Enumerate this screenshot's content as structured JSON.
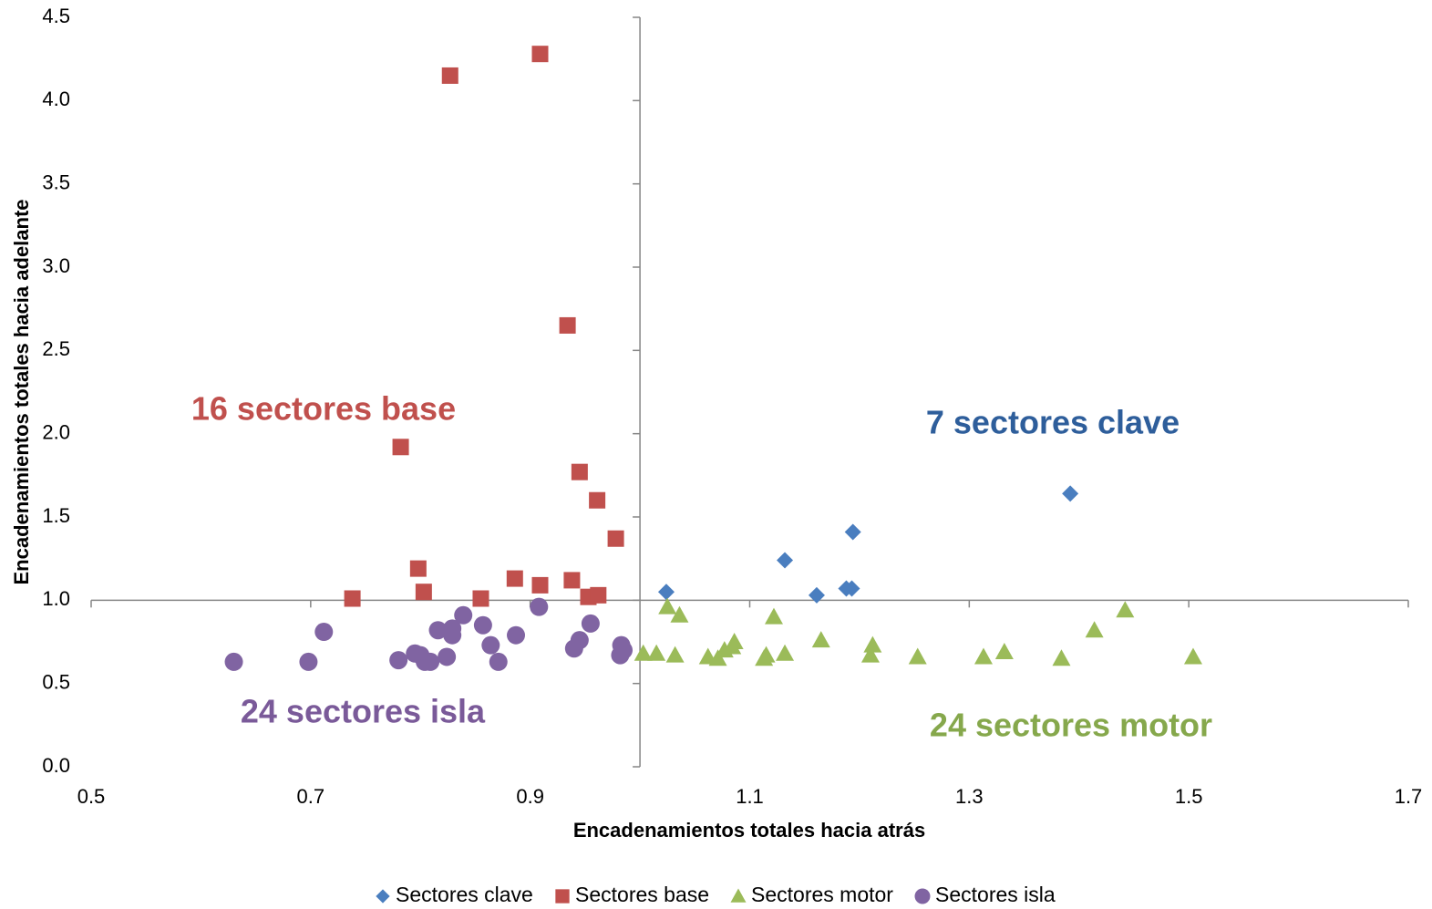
{
  "chart_data": {
    "type": "scatter",
    "x_label": "Encadenamientos totales hacia atrás",
    "y_label": "Encadenamientos totales hacia adelante",
    "xlim": [
      0.5,
      1.7
    ],
    "ylim": [
      0,
      4.5
    ],
    "xticks": [
      0.5,
      0.7,
      0.9,
      1.1,
      1.3,
      1.5,
      1.7
    ],
    "yticks": [
      {
        "value": 0,
        "label": "0.0"
      },
      0.5,
      {
        "value": 1,
        "label": "1.0"
      },
      1.5,
      {
        "value": 2,
        "label": "2.0"
      },
      2.5,
      {
        "value": 3,
        "label": "3.0"
      },
      3.5,
      {
        "value": 4,
        "label": "4.0"
      },
      4.5
    ],
    "axes_cross": {
      "x": 1,
      "y": 1
    },
    "legend": "bottom",
    "series": [
      {
        "name": "Sectores clave",
        "color": "#4a7ebf",
        "marker": "diamond",
        "x": [
          1.024,
          1.132,
          1.161,
          1.188,
          1.193,
          1.194,
          1.392
        ],
        "y": [
          1.05,
          1.24,
          1.03,
          1.07,
          1.07,
          1.41,
          1.64
        ]
      },
      {
        "name": "Sectores base",
        "color": "#c0504d",
        "marker": "square",
        "x": [
          0.909,
          0.827,
          0.934,
          0.782,
          0.945,
          0.961,
          0.978,
          0.798,
          0.886,
          0.909,
          0.938,
          0.803,
          0.738,
          0.855,
          0.953,
          0.962
        ],
        "y": [
          4.28,
          4.15,
          2.65,
          1.92,
          1.77,
          1.6,
          1.37,
          1.19,
          1.13,
          1.09,
          1.12,
          1.05,
          1.01,
          1.01,
          1.02,
          1.03
        ]
      },
      {
        "name": "Sectores motor",
        "color": "#9bbb59",
        "marker": "triangle",
        "x": [
          1.003,
          1.015,
          1.025,
          1.036,
          1.032,
          1.062,
          1.071,
          1.077,
          1.086,
          1.084,
          1.113,
          1.115,
          1.122,
          1.132,
          1.165,
          1.21,
          1.212,
          1.253,
          1.313,
          1.332,
          1.384,
          1.414,
          1.442,
          1.504
        ],
        "y": [
          0.68,
          0.68,
          0.96,
          0.91,
          0.67,
          0.66,
          0.65,
          0.7,
          0.75,
          0.72,
          0.65,
          0.67,
          0.9,
          0.68,
          0.76,
          0.67,
          0.73,
          0.66,
          0.66,
          0.69,
          0.65,
          0.82,
          0.94,
          0.66
        ]
      },
      {
        "name": "Sectores isla",
        "color": "#8064a2",
        "marker": "circle",
        "x": [
          0.63,
          0.698,
          0.712,
          0.78,
          0.795,
          0.804,
          0.809,
          0.816,
          0.824,
          0.829,
          0.829,
          0.839,
          0.857,
          0.864,
          0.871,
          0.887,
          0.908,
          0.94,
          0.945,
          0.955,
          0.982,
          0.983,
          0.8,
          0.985
        ],
        "y": [
          0.63,
          0.63,
          0.81,
          0.64,
          0.68,
          0.63,
          0.63,
          0.82,
          0.66,
          0.83,
          0.79,
          0.91,
          0.85,
          0.73,
          0.63,
          0.79,
          0.96,
          0.71,
          0.76,
          0.86,
          0.67,
          0.73,
          0.67,
          0.7
        ]
      }
    ],
    "annotations": [
      {
        "text": "16 sectores base",
        "color": "#c0504d"
      },
      {
        "text": "7 sectores clave",
        "color": "#2e5e9b"
      },
      {
        "text": "24 sectores isla",
        "color": "#7a5a99"
      },
      {
        "text": "24 sectores motor",
        "color": "#86a84c"
      }
    ]
  }
}
